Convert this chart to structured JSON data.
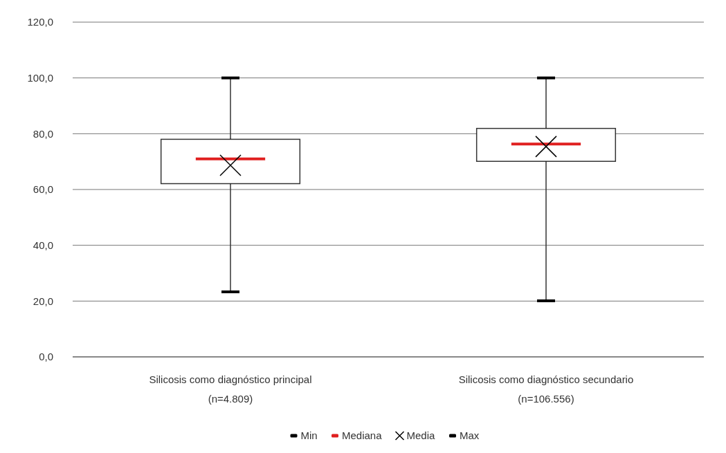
{
  "chart_data": {
    "type": "box",
    "categories": [
      "Silicosis como diagnóstico principal\n(n=4.809)",
      "Silicosis como diagnóstico secundario\n(n=106.556)"
    ],
    "ylim": [
      0,
      120
    ],
    "yticks": [
      {
        "value": 0,
        "label": "0,0"
      },
      {
        "value": 20,
        "label": "20,0"
      },
      {
        "value": 40,
        "label": "40,0"
      },
      {
        "value": 60,
        "label": "60,0"
      },
      {
        "value": 80,
        "label": "80,0"
      },
      {
        "value": 100,
        "label": "100,0"
      },
      {
        "value": 120,
        "label": "120,0"
      }
    ],
    "grid": "y",
    "color": "#000000",
    "boxes": [
      {
        "low": 23.3,
        "q1": 62.1,
        "median": 71.0,
        "q3": 78.0,
        "high": 100.0,
        "mean": 68.7
      },
      {
        "low": 20.1,
        "q1": 70.1,
        "median": 76.3,
        "q3": 81.9,
        "high": 100.0,
        "mean": 75.4
      }
    ],
    "annotations": [
      "Min",
      "Mediana",
      "Media",
      "Max"
    ]
  }
}
